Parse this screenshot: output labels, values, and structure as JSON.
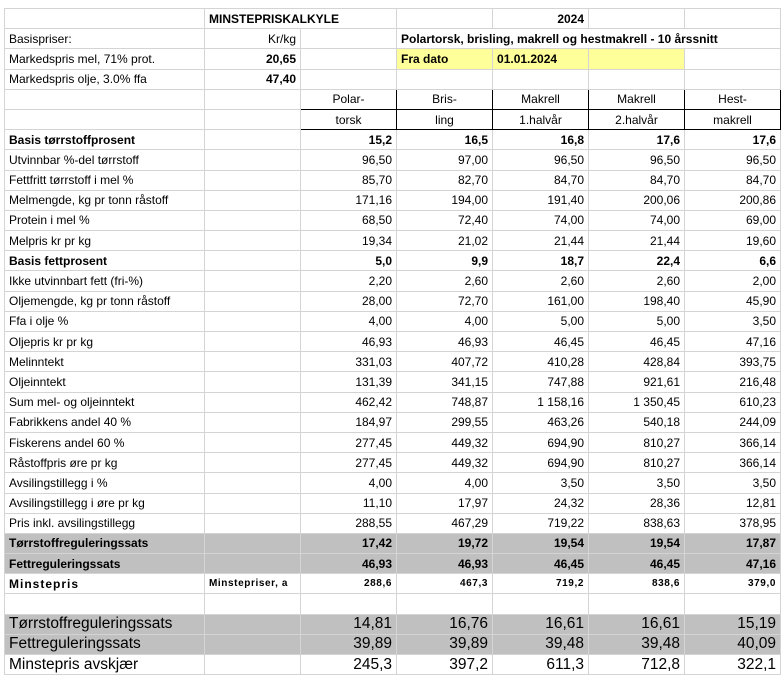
{
  "header": {
    "title": "MINSTEPRISKALKYLE",
    "year": "2024",
    "basis_label": "Basispriser:",
    "unit": "Kr/kg",
    "description": "Polartorsk, brisling, makrell og hestmakrell - 10 årssnitt",
    "meal_label": "Markedspris mel, 71% prot.",
    "meal_price": "20,65",
    "date_label": "Fra dato",
    "date": "01.01.2024",
    "oil_label": "Markedspris olje, 3.0% ffa",
    "oil_price": "47,40"
  },
  "columns": [
    [
      "Polar-",
      "torsk"
    ],
    [
      "Bris-",
      "ling"
    ],
    [
      "Makrell",
      "1.halvår"
    ],
    [
      "Makrell",
      "2.halvår"
    ],
    [
      "Hest-",
      "makrell"
    ]
  ],
  "main_rows": [
    {
      "label": "Basis tørrstoffprosent",
      "values": [
        "15,2",
        "16,5",
        "16,8",
        "17,6",
        "17,6"
      ]
    },
    {
      "label": "Utvinnbar %-del tørrstoff",
      "values": [
        "96,50",
        "97,00",
        "96,50",
        "96,50",
        "96,50"
      ]
    },
    {
      "label": "Fettfritt tørrstoff i mel %",
      "values": [
        "85,70",
        "82,70",
        "84,70",
        "84,70",
        "84,70"
      ]
    },
    {
      "label": "Melmengde, kg pr tonn råstoff",
      "values": [
        "171,16",
        "194,00",
        "191,40",
        "200,06",
        "200,86"
      ]
    },
    {
      "label": "Protein i mel %",
      "values": [
        "68,50",
        "72,40",
        "74,00",
        "74,00",
        "69,00"
      ]
    },
    {
      "label": "Melpris kr pr kg",
      "values": [
        "19,34",
        "21,02",
        "21,44",
        "21,44",
        "19,60"
      ]
    },
    {
      "label": "Basis fettprosent",
      "values": [
        "5,0",
        "9,9",
        "18,7",
        "22,4",
        "6,6"
      ]
    },
    {
      "label": "Ikke utvinnbart fett (fri-%)",
      "values": [
        "2,20",
        "2,60",
        "2,60",
        "2,60",
        "2,00"
      ]
    },
    {
      "label": "Oljemengde, kg pr tonn råstoff",
      "values": [
        "28,00",
        "72,70",
        "161,00",
        "198,40",
        "45,90"
      ]
    },
    {
      "label": "Ffa i olje %",
      "values": [
        "4,00",
        "4,00",
        "5,00",
        "5,00",
        "3,50"
      ]
    },
    {
      "label": "Oljepris kr pr kg",
      "values": [
        "46,93",
        "46,93",
        "46,45",
        "46,45",
        "47,16"
      ]
    },
    {
      "label": "Melinntekt",
      "values": [
        "331,03",
        "407,72",
        "410,28",
        "428,84",
        "393,75"
      ]
    },
    {
      "label": "Oljeinntekt",
      "values": [
        "131,39",
        "341,15",
        "747,88",
        "921,61",
        "216,48"
      ]
    },
    {
      "label": "Sum mel- og oljeinntekt",
      "values": [
        "462,42",
        "748,87",
        "1 158,16",
        "1 350,45",
        "610,23"
      ]
    },
    {
      "label": "Fabrikkens andel 40 %",
      "values": [
        "184,97",
        "299,55",
        "463,26",
        "540,18",
        "244,09"
      ]
    },
    {
      "label": "Fiskerens andel 60 %",
      "values": [
        "277,45",
        "449,32",
        "694,90",
        "810,27",
        "366,14"
      ]
    },
    {
      "label": "Råstoffpris øre pr kg",
      "values": [
        "277,45",
        "449,32",
        "694,90",
        "810,27",
        "366,14"
      ]
    },
    {
      "label": "Avsilingstillegg i %",
      "values": [
        "4,00",
        "4,00",
        "3,50",
        "3,50",
        "3,50"
      ]
    },
    {
      "label": "Avsilingstillegg i øre pr kg",
      "values": [
        "11,10",
        "17,97",
        "24,32",
        "28,36",
        "12,81"
      ]
    },
    {
      "label": "Pris inkl. avsilingstillegg",
      "values": [
        "288,55",
        "467,29",
        "719,22",
        "838,63",
        "378,95"
      ]
    }
  ],
  "regulation_rows": [
    {
      "label": "Tørrstoffreguleringssats",
      "values": [
        "17,42",
        "19,72",
        "19,54",
        "19,54",
        "17,87"
      ]
    },
    {
      "label": "Fettreguleringssats",
      "values": [
        "46,93",
        "46,93",
        "46,45",
        "46,45",
        "47,16"
      ]
    }
  ],
  "minstepris": {
    "label": "Minstepris",
    "note": "Minstepriser, a",
    "values": [
      "288,6",
      "467,3",
      "719,2",
      "838,6",
      "379,0"
    ]
  },
  "final_rows": [
    {
      "label": "Tørrstoffreguleringssats",
      "values": [
        "14,81",
        "16,76",
        "16,61",
        "16,61",
        "15,19"
      ]
    },
    {
      "label": "Fettreguleringssats",
      "values": [
        "39,89",
        "39,89",
        "39,48",
        "39,48",
        "40,09"
      ]
    },
    {
      "label": "Minstepris avskjær",
      "values": [
        "245,3",
        "397,2",
        "611,3",
        "712,8",
        "322,1"
      ]
    }
  ]
}
